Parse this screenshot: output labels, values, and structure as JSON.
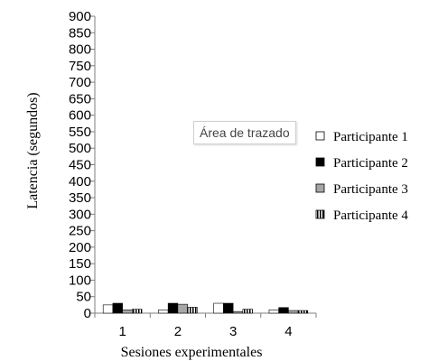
{
  "tooltip": {
    "text": "Área de trazado"
  },
  "chart_data": {
    "type": "bar",
    "title": "",
    "xlabel": "Sesiones experimentales",
    "ylabel": "Latencia (segundos)",
    "categories": [
      "1",
      "2",
      "3",
      "4"
    ],
    "ylim": [
      0,
      900
    ],
    "yticks": [
      0,
      50,
      100,
      150,
      200,
      250,
      300,
      350,
      400,
      450,
      500,
      550,
      600,
      650,
      700,
      750,
      800,
      850,
      900
    ],
    "grid": false,
    "legend_position": "right",
    "series": [
      {
        "name": "Participante 1",
        "pattern": "white",
        "values": [
          25,
          10,
          30,
          10
        ]
      },
      {
        "name": "Participante 2",
        "pattern": "black",
        "values": [
          30,
          30,
          30,
          17
        ]
      },
      {
        "name": "Participante 3",
        "pattern": "gray",
        "values": [
          10,
          27,
          5,
          8
        ]
      },
      {
        "name": "Participante 4",
        "pattern": "vertical-stripes",
        "values": [
          12,
          18,
          12,
          8
        ]
      }
    ],
    "colors": {
      "black": "#000000",
      "gray": "#a6a6a6",
      "white": "#ffffff",
      "axis": "#7f7f7f"
    }
  }
}
